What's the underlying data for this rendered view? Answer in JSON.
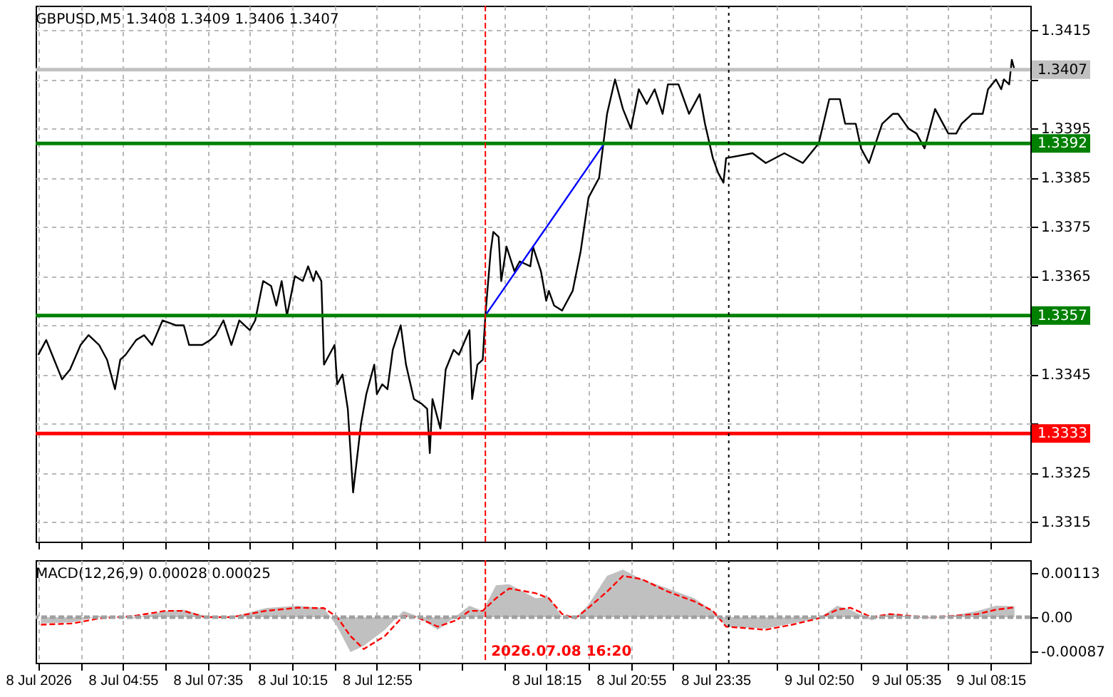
{
  "chart_data": [
    {
      "type": "line",
      "title": "GBPUSD,M5  1.3408 1.3409 1.3406 1.3407",
      "xlim": [
        "2026-07-08T02:10",
        "2026-07-09T09:30"
      ],
      "xticks": [
        {
          "value": "2026-07-08T02:15",
          "label": null
        },
        {
          "value": "2026-07-08T03:35",
          "label": null
        },
        {
          "value": "2026-07-08T04:55",
          "label": null
        },
        {
          "value": "2026-07-08T06:15",
          "label": null
        },
        {
          "value": "2026-07-08T07:35",
          "label": null
        },
        {
          "value": "2026-07-08T08:55",
          "label": null
        },
        {
          "value": "2026-07-08T10:15",
          "label": null
        },
        {
          "value": "2026-07-08T11:35",
          "label": null
        },
        {
          "value": "2026-07-08T12:55",
          "label": null
        },
        {
          "value": "2026-07-08T14:15",
          "label": null
        },
        {
          "value": "2026-07-08T15:35",
          "label": null
        },
        {
          "value": "2026-07-08T16:55",
          "label": null
        },
        {
          "value": "2026-07-08T18:15",
          "label": null
        },
        {
          "value": "2026-07-08T19:35",
          "label": null
        },
        {
          "value": "2026-07-08T20:55",
          "label": null
        },
        {
          "value": "2026-07-08T22:15",
          "label": null
        },
        {
          "value": "2026-07-08T23:35",
          "label": null
        },
        {
          "value": "2026-07-09T01:30",
          "label": null
        },
        {
          "value": "2026-07-09T02:50",
          "label": null
        },
        {
          "value": "2026-07-09T04:10",
          "label": null
        },
        {
          "value": "2026-07-09T05:35",
          "label": null
        },
        {
          "value": "2026-07-09T06:55",
          "label": null
        },
        {
          "value": "2026-07-09T08:15",
          "label": null
        }
      ],
      "ylim": [
        1.3311,
        1.342
      ],
      "yticks": [
        1.3315,
        1.3325,
        {
          "value": 1.3335,
          "label": null
        },
        1.3345,
        {
          "value": 1.3355,
          "label": null
        },
        1.3365,
        1.3375,
        1.3385,
        1.3395,
        {
          "value": 1.3405,
          "label": null
        },
        1.3415
      ],
      "grid": true,
      "tick_labels": "y",
      "ref_lines": [
        {
          "axis": "y",
          "value": 1.3392,
          "label": "1.3392",
          "color": "#008000"
        },
        {
          "axis": "y",
          "value": 1.3357,
          "label": "1.3357",
          "color": "#008000"
        },
        {
          "axis": "y",
          "value": 1.3333,
          "label": "1.3333",
          "color": "#ff0000"
        },
        {
          "axis": "y",
          "value": 1.3407,
          "label": "1.3407",
          "color": "#c0c0c0"
        },
        {
          "axis": "x",
          "value": "2026-07-08T16:20",
          "color": "#ff0000",
          "line_style": "dashed"
        },
        {
          "axis": "x",
          "value": "2026-07-09T00:00",
          "color": "#000000",
          "line_style": "dotted"
        }
      ],
      "series": [
        {
          "color": "#000000",
          "x": [
            "2026-07-08T02:15",
            "2026-07-08T02:30",
            "2026-07-08T02:45",
            "2026-07-08T03:00",
            "2026-07-08T03:15",
            "2026-07-08T03:35",
            "2026-07-08T03:50",
            "2026-07-08T04:10",
            "2026-07-08T04:25",
            "2026-07-08T04:40",
            "2026-07-08T04:50",
            "2026-07-08T05:00",
            "2026-07-08T05:20",
            "2026-07-08T05:35",
            "2026-07-08T05:50",
            "2026-07-08T06:10",
            "2026-07-08T06:35",
            "2026-07-08T06:50",
            "2026-07-08T07:00",
            "2026-07-08T07:25",
            "2026-07-08T07:40",
            "2026-07-08T07:50",
            "2026-07-08T08:05",
            "2026-07-08T08:20",
            "2026-07-08T08:35",
            "2026-07-08T08:55",
            "2026-07-08T09:05",
            "2026-07-08T09:20",
            "2026-07-08T09:35",
            "2026-07-08T09:45",
            "2026-07-08T09:55",
            "2026-07-08T10:05",
            "2026-07-08T10:20",
            "2026-07-08T10:35",
            "2026-07-08T10:45",
            "2026-07-08T10:55",
            "2026-07-08T11:00",
            "2026-07-08T11:10",
            "2026-07-08T11:15",
            "2026-07-08T11:35",
            "2026-07-08T11:40",
            "2026-07-08T11:50",
            "2026-07-08T12:00",
            "2026-07-08T12:10",
            "2026-07-08T12:25",
            "2026-07-08T12:35",
            "2026-07-08T12:50",
            "2026-07-08T12:55",
            "2026-07-08T13:05",
            "2026-07-08T13:15",
            "2026-07-08T13:25",
            "2026-07-08T13:40",
            "2026-07-08T13:50",
            "2026-07-08T14:05",
            "2026-07-08T14:20",
            "2026-07-08T14:30",
            "2026-07-08T14:35",
            "2026-07-08T14:40",
            "2026-07-08T14:55",
            "2026-07-08T15:05",
            "2026-07-08T15:20",
            "2026-07-08T15:30",
            "2026-07-08T15:50",
            "2026-07-08T15:55",
            "2026-07-08T16:05",
            "2026-07-08T16:15",
            "2026-07-08T16:20",
            "2026-07-08T16:30",
            "2026-07-08T16:35",
            "2026-07-08T16:45",
            "2026-07-08T16:50",
            "2026-07-08T17:00",
            "2026-07-08T17:15",
            "2026-07-08T17:25",
            "2026-07-08T17:45",
            "2026-07-08T17:50",
            "2026-07-08T18:05",
            "2026-07-08T18:15",
            "2026-07-08T18:20",
            "2026-07-08T18:30",
            "2026-07-08T18:45",
            "2026-07-08T19:05",
            "2026-07-08T19:20",
            "2026-07-08T19:35",
            "2026-07-08T19:55",
            "2026-07-08T20:10",
            "2026-07-08T20:25",
            "2026-07-08T20:40",
            "2026-07-08T20:55",
            "2026-07-08T21:10",
            "2026-07-08T21:25",
            "2026-07-08T21:40",
            "2026-07-08T21:55",
            "2026-07-08T22:05",
            "2026-07-08T22:25",
            "2026-07-08T22:45",
            "2026-07-08T23:05",
            "2026-07-08T23:15",
            "2026-07-08T23:30",
            "2026-07-08T23:40",
            "2026-07-08T23:50",
            "2026-07-08T23:55",
            "2026-07-09T00:45",
            "2026-07-09T01:10",
            "2026-07-09T01:45",
            "2026-07-09T02:20",
            "2026-07-09T02:50",
            "2026-07-09T03:10",
            "2026-07-09T03:30",
            "2026-07-09T03:40",
            "2026-07-09T04:00",
            "2026-07-09T04:10",
            "2026-07-09T04:25",
            "2026-07-09T04:50",
            "2026-07-09T05:10",
            "2026-07-09T05:20",
            "2026-07-09T05:40",
            "2026-07-09T05:55",
            "2026-07-09T06:10",
            "2026-07-09T06:30",
            "2026-07-09T06:45",
            "2026-07-09T06:55",
            "2026-07-09T07:10",
            "2026-07-09T07:20",
            "2026-07-09T07:40",
            "2026-07-09T08:00",
            "2026-07-09T08:10",
            "2026-07-09T08:25",
            "2026-07-09T08:35",
            "2026-07-09T08:40",
            "2026-07-09T08:50",
            "2026-07-09T08:55",
            "2026-07-09T09:00"
          ],
          "values": [
            1.3349,
            1.3352,
            1.3348,
            1.3344,
            1.3346,
            1.3351,
            1.3353,
            1.3351,
            1.3348,
            1.3342,
            1.3348,
            1.3349,
            1.3352,
            1.3353,
            1.3351,
            1.3356,
            1.3355,
            1.3355,
            1.3351,
            1.3351,
            1.3352,
            1.3353,
            1.3356,
            1.3351,
            1.3356,
            1.3354,
            1.3356,
            1.3364,
            1.3363,
            1.3359,
            1.3364,
            1.3357,
            1.3365,
            1.3364,
            1.3367,
            1.3364,
            1.3366,
            1.3364,
            1.3347,
            1.3351,
            1.3343,
            1.3345,
            1.3338,
            1.3321,
            1.3335,
            1.3341,
            1.3347,
            1.3341,
            1.3343,
            1.3342,
            1.335,
            1.3355,
            1.3347,
            1.334,
            1.3339,
            1.3338,
            1.3329,
            1.334,
            1.3334,
            1.3346,
            1.335,
            1.3349,
            1.3354,
            1.334,
            1.3347,
            1.3348,
            1.3357,
            1.337,
            1.3374,
            1.3373,
            1.3364,
            1.3371,
            1.3366,
            1.3368,
            1.3367,
            1.3371,
            1.3366,
            1.336,
            1.3362,
            1.3359,
            1.3358,
            1.3362,
            1.337,
            1.3381,
            1.3385,
            1.3398,
            1.3405,
            1.3399,
            1.3395,
            1.3403,
            1.34,
            1.3403,
            1.3398,
            1.3404,
            1.3404,
            1.3398,
            1.3402,
            1.3396,
            1.3389,
            1.3386,
            1.3384,
            1.3389,
            1.339,
            1.3388,
            1.339,
            1.3388,
            1.3392,
            1.3401,
            1.3401,
            1.3396,
            1.3396,
            1.3391,
            1.3388,
            1.3396,
            1.3398,
            1.3398,
            1.3395,
            1.3394,
            1.3391,
            1.3399,
            1.3396,
            1.3394,
            1.3394,
            1.3396,
            1.3398,
            1.3398,
            1.3403,
            1.3405,
            1.3403,
            1.3405,
            1.3404,
            1.3409,
            1.3407
          ]
        },
        {
          "color": "#0000ff",
          "x": [
            "2026-07-08T16:20",
            "2026-07-08T20:05"
          ],
          "values": [
            1.3357,
            1.3392
          ]
        }
      ]
    },
    {
      "type": "area",
      "title": "MACD(12,26,9) 0.00028 0.00025",
      "xlim": [
        "2026-07-08T02:10",
        "2026-07-09T09:30"
      ],
      "xticks": [
        {
          "value": "2026-07-08T02:15",
          "label": "8 Jul 2026"
        },
        {
          "value": "2026-07-08T03:35",
          "label": null
        },
        {
          "value": "2026-07-08T04:55",
          "label": "8 Jul 04:55"
        },
        {
          "value": "2026-07-08T06:15",
          "label": null
        },
        {
          "value": "2026-07-08T07:35",
          "label": "8 Jul 07:35"
        },
        {
          "value": "2026-07-08T08:55",
          "label": null
        },
        {
          "value": "2026-07-08T10:15",
          "label": "8 Jul 10:15"
        },
        {
          "value": "2026-07-08T11:35",
          "label": null
        },
        {
          "value": "2026-07-08T12:55",
          "label": "8 Jul 12:55"
        },
        {
          "value": "2026-07-08T14:15",
          "label": null
        },
        {
          "value": "2026-07-08T15:35",
          "label": null
        },
        {
          "value": "2026-07-08T16:55",
          "label": null
        },
        {
          "value": "2026-07-08T18:15",
          "label": "8 Jul 18:15"
        },
        {
          "value": "2026-07-08T19:35",
          "label": null
        },
        {
          "value": "2026-07-08T20:55",
          "label": "8 Jul 20:55"
        },
        {
          "value": "2026-07-08T22:15",
          "label": null
        },
        {
          "value": "2026-07-08T23:35",
          "label": "8 Jul 23:35"
        },
        {
          "value": "2026-07-09T01:30",
          "label": null
        },
        {
          "value": "2026-07-09T02:50",
          "label": "9 Jul 02:50"
        },
        {
          "value": "2026-07-09T04:10",
          "label": null
        },
        {
          "value": "2026-07-09T05:35",
          "label": "9 Jul 05:35"
        },
        {
          "value": "2026-07-09T06:55",
          "label": null
        },
        {
          "value": "2026-07-09T08:15",
          "label": "9 Jul 08:15"
        }
      ],
      "ylim": [
        -0.00116,
        0.00145
      ],
      "yticks": [
        0.00113,
        {
          "value": 0,
          "label": "0.00"
        },
        -0.00087
      ],
      "grid": "x",
      "ref_lines": [
        {
          "axis": "y",
          "value": 0,
          "color": "#a0a0a0",
          "line_style": "dashed"
        },
        {
          "axis": "x",
          "value": "2026-07-08T16:20",
          "label": "2026.07.08 16:20",
          "color": "#ff0000",
          "line_style": "dashed"
        },
        {
          "axis": "x",
          "value": "2026-07-09T00:00",
          "color": "#000000",
          "line_style": "dotted"
        }
      ],
      "series": [
        {
          "color": "#c0c0c0",
          "x": [
            "2026-07-08T02:20",
            "2026-07-08T03:20",
            "2026-07-08T04:10",
            "2026-07-08T05:15",
            "2026-07-08T06:15",
            "2026-07-08T06:50",
            "2026-07-08T07:30",
            "2026-07-08T08:20",
            "2026-07-08T09:25",
            "2026-07-08T10:25",
            "2026-07-08T11:15",
            "2026-07-08T11:40",
            "2026-07-08T12:05",
            "2026-07-08T12:30",
            "2026-07-08T13:10",
            "2026-07-08T13:45",
            "2026-07-08T14:10",
            "2026-07-08T14:50",
            "2026-07-08T15:25",
            "2026-07-08T15:50",
            "2026-07-08T16:15",
            "2026-07-08T16:40",
            "2026-07-08T17:05",
            "2026-07-08T17:55",
            "2026-07-08T18:20",
            "2026-07-08T18:45",
            "2026-07-08T19:10",
            "2026-07-08T19:35",
            "2026-07-08T20:10",
            "2026-07-08T20:40",
            "2026-07-08T21:15",
            "2026-07-08T22:05",
            "2026-07-08T22:55",
            "2026-07-08T23:30",
            "2026-07-08T23:55",
            "2026-07-09T01:10",
            "2026-07-09T02:00",
            "2026-07-09T02:50",
            "2026-07-09T03:25",
            "2026-07-09T03:50",
            "2026-07-09T04:30",
            "2026-07-09T05:05",
            "2026-07-09T05:45",
            "2026-07-09T06:20",
            "2026-07-09T07:00",
            "2026-07-09T07:50",
            "2026-07-09T08:25",
            "2026-07-09T09:00"
          ],
          "values": [
            -0.00016,
            -0.00013,
            3e-05,
            -3e-05,
            0.00016,
            0.00019,
            3e-05,
            0,
            0.00023,
            0.00029,
            0.00023,
            -0.00024,
            -0.00089,
            -0.00073,
            -0.00032,
            0.00016,
            3e-05,
            -0.00032,
            3e-05,
            0.00029,
            0.00016,
            0.00081,
            0.00084,
            0.00048,
            0.00052,
            0,
            -3e-05,
            0.00032,
            0.00105,
            0.00121,
            0.00097,
            0.00073,
            0.00048,
            0.00016,
            -0.00024,
            -0.00029,
            -0.00016,
            -3e-05,
            0.00029,
            0.00019,
            -8e-05,
            0.0001,
            0,
            -3e-05,
            3e-05,
            0.00016,
            0.00029,
            0.00028
          ]
        },
        {
          "type": "line",
          "color": "#ff0000",
          "line_style": "dashed",
          "x": [
            "2026-07-08T02:20",
            "2026-07-08T03:20",
            "2026-07-08T04:10",
            "2026-07-08T05:15",
            "2026-07-08T06:15",
            "2026-07-08T06:50",
            "2026-07-08T07:30",
            "2026-07-08T08:20",
            "2026-07-08T09:25",
            "2026-07-08T10:25",
            "2026-07-08T11:15",
            "2026-07-08T11:40",
            "2026-07-08T12:05",
            "2026-07-08T12:30",
            "2026-07-08T13:10",
            "2026-07-08T13:45",
            "2026-07-08T14:10",
            "2026-07-08T14:50",
            "2026-07-08T15:25",
            "2026-07-08T15:50",
            "2026-07-08T16:15",
            "2026-07-08T16:40",
            "2026-07-08T17:05",
            "2026-07-08T17:55",
            "2026-07-08T18:20",
            "2026-07-08T18:45",
            "2026-07-08T19:10",
            "2026-07-08T19:35",
            "2026-07-08T20:10",
            "2026-07-08T20:40",
            "2026-07-08T21:15",
            "2026-07-08T22:05",
            "2026-07-08T22:55",
            "2026-07-08T23:30",
            "2026-07-08T23:55",
            "2026-07-09T01:10",
            "2026-07-09T02:00",
            "2026-07-09T02:50",
            "2026-07-09T03:25",
            "2026-07-09T03:50",
            "2026-07-09T04:30",
            "2026-07-09T05:05",
            "2026-07-09T05:45",
            "2026-07-09T06:20",
            "2026-07-09T07:00",
            "2026-07-09T07:50",
            "2026-07-09T08:25",
            "2026-07-09T09:00"
          ],
          "values": [
            -0.00019,
            -0.00016,
            -3e-05,
            3e-05,
            0.00016,
            0.00016,
            0,
            0,
            0.00016,
            0.00024,
            0.00023,
            0,
            -0.00048,
            -0.00081,
            -0.00048,
            3e-05,
            0,
            -0.00024,
            -8e-05,
            0.00016,
            0.00016,
            0.00048,
            0.00073,
            0.00061,
            0.00048,
            8e-05,
            -3e-05,
            0.00024,
            0.00065,
            0.00105,
            0.00097,
            0.00065,
            0.0004,
            0.00016,
            -0.00024,
            -0.00032,
            -0.00019,
            -3e-05,
            0.00019,
            0.00024,
            0,
            8e-05,
            3e-05,
            0,
            3e-05,
            8e-05,
            0.00019,
            0.00025
          ]
        }
      ]
    }
  ]
}
